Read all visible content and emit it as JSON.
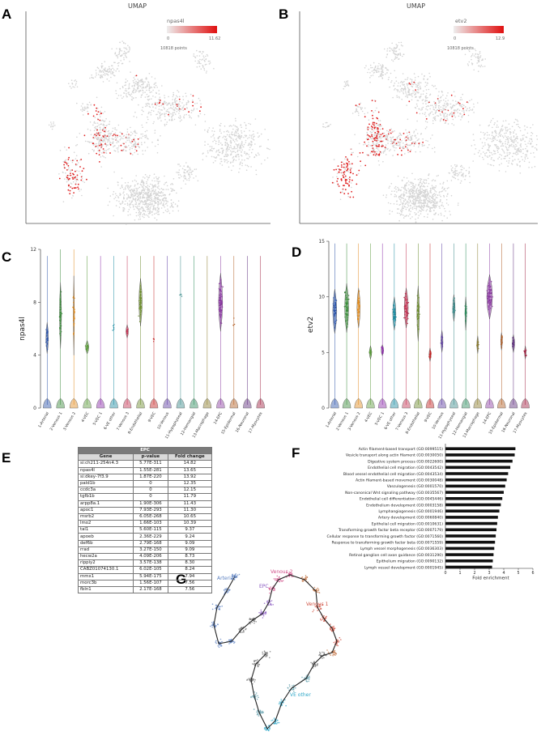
{
  "panels": [
    "A",
    "B",
    "C",
    "D",
    "E",
    "F",
    "G"
  ],
  "umap": {
    "title": "UMAP",
    "points_label": "10818 points",
    "a": {
      "gene": "npas4l",
      "min": "0",
      "max": "11.62"
    },
    "b": {
      "gene": "etv2",
      "min": "0",
      "max": "12.9"
    }
  },
  "violin_c": {
    "ylabel": "npas4l",
    "yticks": [
      "0",
      "4",
      "8",
      "12"
    ],
    "ymax": 12
  },
  "violin_d": {
    "ylabel": "etv2",
    "yticks": [
      "0",
      "5",
      "10",
      "15"
    ],
    "ymax": 15
  },
  "clusters": [
    "1-Arterial",
    "2-Venous 1",
    "3-Venous 2",
    "4-VEC",
    "5-VEC 1",
    "6-VE other",
    "7-Venous 3",
    "8-Endothelial",
    "9-VEC",
    "10-Venous",
    "11-Hypophyseal",
    "12-Hemangial",
    "13-Macrophage",
    "14-EPC",
    "15-Epidermal",
    "16-Neuronal",
    "17-Myocytes"
  ],
  "colors": [
    "#2a52a8",
    "#3a8a3a",
    "#e08a1c",
    "#5a9a3a",
    "#8a2aa8",
    "#1a8aa0",
    "#c03050",
    "#6a8a2a",
    "#c02020",
    "#5a3aa0",
    "#3a8a8a",
    "#2a8a5a",
    "#8a7a2a",
    "#8a3aa0",
    "#b05a20",
    "#5a2a7a",
    "#a02040"
  ],
  "epc_table": {
    "title": "EPC",
    "headers": [
      "Gene",
      "p-value",
      "Fold change"
    ],
    "rows": [
      [
        "si:ch211-254n4.3",
        "5.77E-311",
        "14.82"
      ],
      [
        "npas4l",
        "1.55E-281",
        "13.65"
      ],
      [
        "si:dkey-7f3.9",
        "1.87E-220",
        "13.92"
      ],
      [
        "pald1b",
        "0",
        "12.35"
      ],
      [
        "ccdc3a",
        "0",
        "12.15"
      ],
      [
        "tgfb1b",
        "0",
        "11.79"
      ],
      [
        "arpp8a.1",
        "1.90E-306",
        "11.43"
      ],
      [
        "apoc1",
        "7.93E-293",
        "11.30"
      ],
      [
        "msrb2",
        "6.05E-268",
        "10.65"
      ],
      [
        "lmo2",
        "1.66E-103",
        "10.39"
      ],
      [
        "tal1",
        "5.60E-115",
        "9.37"
      ],
      [
        "apoeb",
        "2.36E-229",
        "9.24"
      ],
      [
        "def6b",
        "2.79E-168",
        "9.09"
      ],
      [
        "rrad",
        "3.27E-150",
        "9.09"
      ],
      [
        "hecw2a",
        "4.09E-206",
        "8.73"
      ],
      [
        "rippiy2",
        "3.57E-138",
        "8.30"
      ],
      [
        "CABZ01074130.1",
        "6.02E-105",
        "8.24"
      ],
      [
        "mmx1",
        "5.94E-175",
        "7.94"
      ],
      [
        "morc3b",
        "1.56E-107",
        "7.56"
      ],
      [
        "fbln1",
        "2.17E-168",
        "7.56"
      ]
    ]
  },
  "go_chart": {
    "chart_data": {
      "type": "bar",
      "orientation": "horizontal",
      "categories": [
        "Actin filament-based transport (GO:0099515)",
        "Vesicle transport along actin filament (GO:0030050)",
        "Digestive system process (GO:0022600)",
        "Endothelial cell migration (GO:0043542)",
        "Blood vessel endothelial cell migration (GO:0043534)",
        "Actin filament-based movement (GO:0030048)",
        "Vasculogenesis (GO:0001570)",
        "Non-canonical Wnt signaling pathway (GO:0035567)",
        "Endothelial cell differentiation (GO:0045446)",
        "Endothelium development (GO:0003158)",
        "Lymphangiogenesis (GO:0001946)",
        "Artery development (GO:0060840)",
        "Epithelial cell migration (GO:0010631)",
        "Transforming growth factor beta receptor (GO:0007179)",
        "Cellular response to transforming growth factor (GO:0071560)",
        "Response to transforming growth factor beta (GO:0071559)",
        "Lymph vessel morphogenesis (GO:0036303)",
        "Retinal ganglion cell axon guidance (GO:0031290)",
        "Epithelium migration (GO:0090132)",
        "Lymph vessel development (GO:0001945)"
      ],
      "values": [
        4.8,
        4.75,
        4.6,
        4.45,
        4.3,
        4.2,
        4.1,
        4.0,
        3.9,
        3.8,
        3.7,
        3.6,
        3.55,
        3.5,
        3.45,
        3.4,
        3.35,
        3.3,
        3.25,
        3.2
      ],
      "xlabel": "Fold enrichment",
      "xticks": [
        "0",
        "1",
        "2",
        "3",
        "4",
        "5",
        "6"
      ],
      "xlim": [
        0,
        6
      ]
    }
  },
  "trajectory": {
    "labels": [
      "Arterial",
      "Venous 2",
      "EPC",
      "Venous 1",
      "VE other"
    ],
    "colors": [
      "#5a7fc0",
      "#d0508a",
      "#8a5ac0",
      "#d05040",
      "#30a8c8"
    ]
  }
}
